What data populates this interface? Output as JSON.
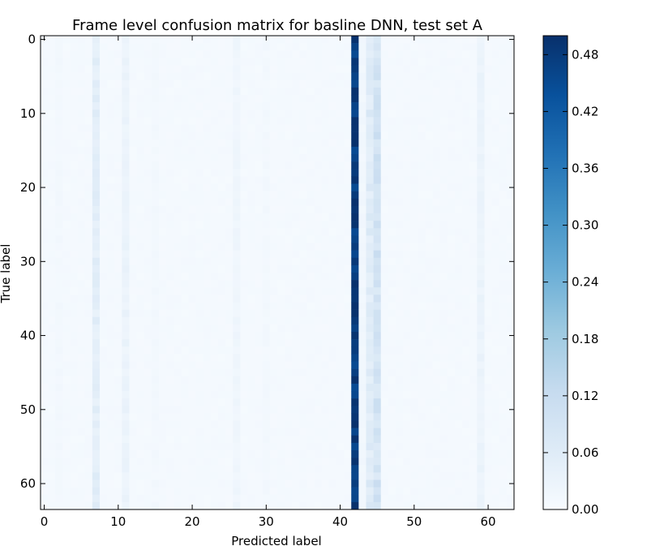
{
  "chart_data": {
    "type": "heatmap",
    "title": "Frame level confusion matrix for basline DNN, test set A",
    "xlabel": "Predicted label",
    "ylabel": "True label",
    "n_classes": 64,
    "xlim": [
      -0.5,
      63.5
    ],
    "ylim": [
      63.5,
      -0.5
    ],
    "x_ticks": [
      0,
      10,
      20,
      30,
      40,
      50,
      60
    ],
    "y_ticks": [
      0,
      10,
      20,
      30,
      40,
      50,
      60
    ],
    "colorbar": {
      "range": [
        0.0,
        0.5
      ],
      "ticks": [
        "0.00",
        "0.06",
        "0.12",
        "0.18",
        "0.24",
        "0.30",
        "0.36",
        "0.42",
        "0.48"
      ],
      "colormap": "Blues"
    },
    "base_value": 0.008,
    "column_values": {
      "2": 0.012,
      "7": 0.05,
      "11": 0.03,
      "15": 0.012,
      "26": 0.02,
      "30": 0.012,
      "42": 0.47,
      "43": 0.015,
      "44": 0.06,
      "45": 0.09,
      "59": 0.03
    },
    "column_variation": {
      "42": [
        0.45,
        0.5
      ]
    },
    "grid": false,
    "legend": "none"
  }
}
